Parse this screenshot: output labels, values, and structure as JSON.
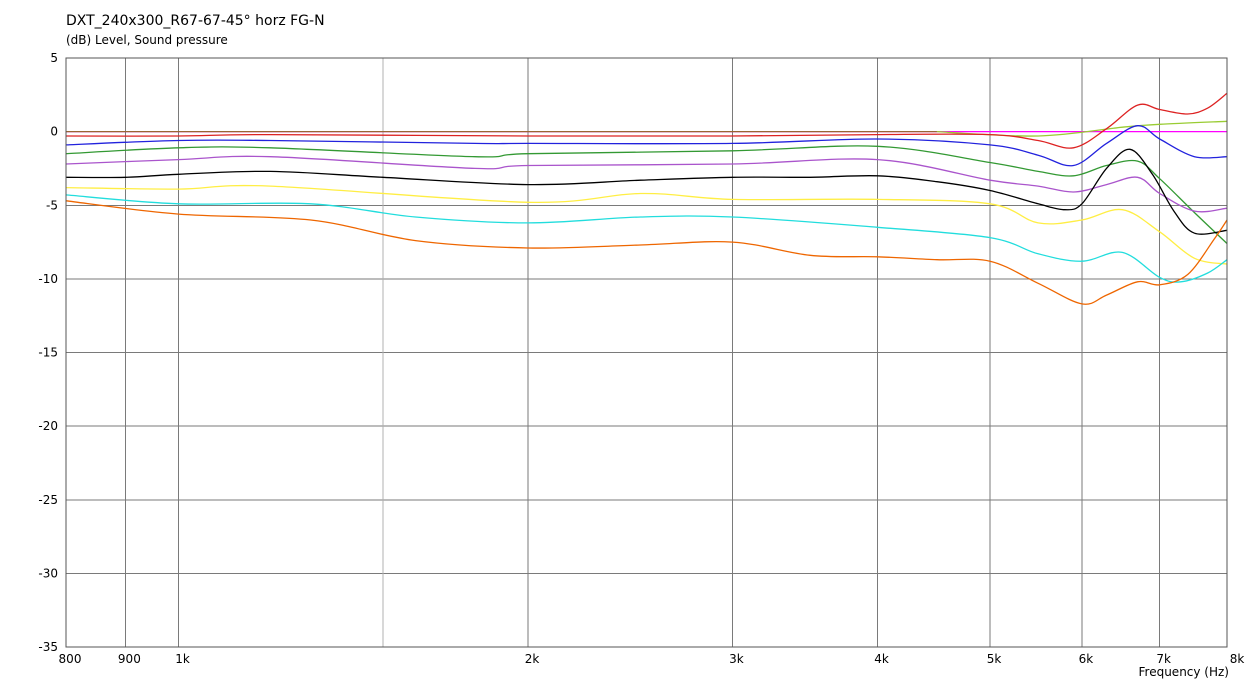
{
  "chart_data": {
    "type": "line",
    "title": "DXT_240x300_R67-67-45° horz FG-N",
    "ylabel": "(dB)  Level, Sound pressure",
    "xlabel": "Frequency  (Hz)",
    "x_scale": "log",
    "xlim": [
      800,
      8000
    ],
    "ylim": [
      -35,
      5
    ],
    "grid": true,
    "x_ticks": [
      {
        "value": 800,
        "label": "800"
      },
      {
        "value": 900,
        "label": "900"
      },
      {
        "value": 1000,
        "label": "1k"
      },
      {
        "value": 2000,
        "label": "2k"
      },
      {
        "value": 3000,
        "label": "3k"
      },
      {
        "value": 4000,
        "label": "4k"
      },
      {
        "value": 5000,
        "label": "5k"
      },
      {
        "value": 6000,
        "label": "6k"
      },
      {
        "value": 7000,
        "label": "7k"
      },
      {
        "value": 8000,
        "label": "8k"
      }
    ],
    "x_minor_grid": [
      1500
    ],
    "y_ticks": [
      5,
      0,
      -5,
      -10,
      -15,
      -20,
      -25,
      -30,
      -35
    ],
    "series": [
      {
        "color": "#ff00ff",
        "x": [
          800,
          1000,
          2000,
          4000,
          6000,
          8000
        ],
        "y": [
          0,
          0,
          0,
          0,
          0,
          0
        ]
      },
      {
        "color": "#996633",
        "x": [
          800,
          1000,
          2000,
          3000,
          4500
        ],
        "y": [
          0,
          0,
          0,
          0,
          0
        ]
      },
      {
        "color": "#99cc33",
        "x": [
          4500,
          5500,
          6500,
          7000,
          8000
        ],
        "y": [
          0,
          -0.3,
          0.3,
          0.5,
          0.7
        ]
      },
      {
        "color": "#dd2222",
        "x": [
          800,
          1000,
          1200,
          2000,
          3000,
          4000,
          5000,
          5500,
          5900,
          6300,
          6700,
          7000,
          7400,
          7700,
          8000
        ],
        "y": [
          -0.3,
          -0.3,
          -0.2,
          -0.3,
          -0.3,
          -0.2,
          -0.2,
          -0.6,
          -1.1,
          0.2,
          1.8,
          1.5,
          1.2,
          1.6,
          2.6
        ]
      },
      {
        "color": "#2222dd",
        "x": [
          800,
          1000,
          1200,
          1800,
          2000,
          3000,
          4000,
          5000,
          5500,
          5900,
          6300,
          6700,
          7000,
          7500,
          8000
        ],
        "y": [
          -0.9,
          -0.6,
          -0.6,
          -0.8,
          -0.8,
          -0.8,
          -0.5,
          -0.9,
          -1.6,
          -2.3,
          -0.8,
          0.4,
          -0.5,
          -1.7,
          -1.7
        ]
      },
      {
        "color": "#339933",
        "x": [
          800,
          1000,
          1200,
          1800,
          2000,
          3000,
          4000,
          5000,
          5500,
          5900,
          6300,
          6700,
          7000,
          7500,
          8000
        ],
        "y": [
          -1.5,
          -1.1,
          -1.1,
          -1.7,
          -1.5,
          -1.3,
          -1.0,
          -2.1,
          -2.7,
          -3.0,
          -2.3,
          -2.0,
          -3.2,
          -5.5,
          -7.6
        ]
      },
      {
        "color": "#aa55cc",
        "x": [
          800,
          1000,
          1200,
          1800,
          2000,
          3000,
          4000,
          5000,
          5500,
          5900,
          6300,
          6700,
          7000,
          7500,
          8000
        ],
        "y": [
          -2.2,
          -1.9,
          -1.7,
          -2.5,
          -2.3,
          -2.2,
          -1.9,
          -3.3,
          -3.7,
          -4.1,
          -3.6,
          -3.1,
          -4.2,
          -5.4,
          -5.2
        ]
      },
      {
        "color": "#000000",
        "x": [
          800,
          900,
          1000,
          1200,
          1500,
          2000,
          2500,
          3000,
          3500,
          4000,
          4500,
          5000,
          5500,
          5800,
          6000,
          6300,
          6600,
          6900,
          7200,
          7500,
          8000
        ],
        "y": [
          -3.1,
          -3.1,
          -2.9,
          -2.7,
          -3.1,
          -3.6,
          -3.3,
          -3.1,
          -3.1,
          -3.0,
          -3.4,
          -4.0,
          -4.9,
          -5.3,
          -4.9,
          -2.5,
          -1.2,
          -2.9,
          -5.4,
          -6.9,
          -6.7
        ]
      },
      {
        "color": "#ffee44",
        "x": [
          800,
          1000,
          1200,
          2000,
          2500,
          3000,
          4000,
          5000,
          5500,
          6000,
          6500,
          7000,
          7500,
          8000
        ],
        "y": [
          -3.8,
          -3.9,
          -3.7,
          -4.8,
          -4.2,
          -4.6,
          -4.6,
          -4.9,
          -6.2,
          -6.0,
          -5.3,
          -6.8,
          -8.6,
          -9.0
        ]
      },
      {
        "color": "#22dddd",
        "x": [
          800,
          1000,
          1300,
          1600,
          2000,
          2500,
          3000,
          4000,
          5000,
          5500,
          6000,
          6500,
          7000,
          7300,
          7700,
          8000
        ],
        "y": [
          -4.3,
          -4.9,
          -4.9,
          -5.8,
          -6.2,
          -5.8,
          -5.8,
          -6.5,
          -7.2,
          -8.3,
          -8.8,
          -8.2,
          -9.9,
          -10.2,
          -9.6,
          -8.7
        ]
      },
      {
        "color": "#ee6600",
        "x": [
          800,
          1000,
          1300,
          1600,
          2000,
          2500,
          3000,
          3500,
          4000,
          4500,
          5000,
          5500,
          6000,
          6300,
          6700,
          7000,
          7400,
          7800,
          8000
        ],
        "y": [
          -4.7,
          -5.6,
          -6.0,
          -7.4,
          -7.9,
          -7.7,
          -7.5,
          -8.4,
          -8.5,
          -8.7,
          -8.8,
          -10.3,
          -11.7,
          -11.1,
          -10.2,
          -10.4,
          -9.7,
          -7.3,
          -6.0
        ]
      }
    ]
  }
}
